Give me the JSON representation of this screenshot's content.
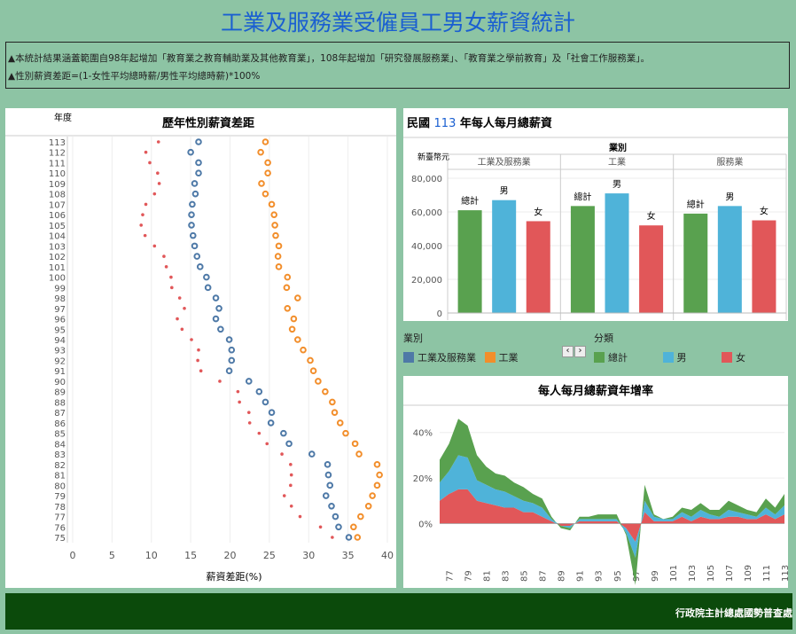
{
  "header": {
    "title": "工業及服務業受僱員工男女薪資統計"
  },
  "notes": [
    "▲本統計結果涵蓋範圍自98年起增加「教育業之教育輔助業及其他教育業」，108年起增加「研究發展服務業」、「教育業之學前教育」及「社會工作服務業」。",
    "▲性別薪資差距=(1-女性平均總時薪/男性平均總時薪)*100%"
  ],
  "legend": {
    "industry_title": "業別",
    "industry_items": [
      "工業及服務業",
      "工業"
    ],
    "category_title": "分類",
    "category_items": [
      "總計",
      "男",
      "女"
    ],
    "prev": "‹",
    "next": "›"
  },
  "footer": {
    "text": "行政院主計總處國勢普查處"
  },
  "colors": {
    "blue": "#4e79a7",
    "orange": "#f28e2b",
    "green": "#59a14f",
    "lightblue": "#4fb3d9",
    "red": "#e15759"
  },
  "chart_data": [
    {
      "type": "scatter",
      "title": "歷年性別薪資差距",
      "ylabel": "年度",
      "xlabel": "薪資差距(%)",
      "xlim": [
        0,
        40
      ],
      "xticks": [
        0,
        5,
        10,
        15,
        20,
        25,
        30,
        35,
        40
      ],
      "years": [
        113,
        112,
        111,
        110,
        109,
        108,
        107,
        106,
        105,
        104,
        103,
        102,
        101,
        100,
        99,
        98,
        97,
        96,
        95,
        94,
        93,
        92,
        91,
        90,
        89,
        88,
        87,
        86,
        85,
        84,
        83,
        82,
        81,
        80,
        79,
        78,
        77,
        76,
        75
      ],
      "series": [
        {
          "name": "工業及服務業",
          "values": [
            16,
            15,
            16,
            16,
            15.5,
            15.6,
            15.2,
            15.1,
            15.1,
            15.3,
            15.5,
            15.8,
            16.2,
            17,
            17.2,
            18.2,
            18.6,
            18.2,
            18.8,
            19.9,
            20.2,
            20.2,
            19.9,
            22.4,
            23.7,
            24.5,
            25.3,
            25.2,
            26.8,
            27.5,
            30.4,
            32.4,
            32.5,
            32.7,
            32.2,
            32.9,
            33.4,
            33.8,
            35.1
          ]
        },
        {
          "name": "工業",
          "values": [
            24.5,
            23.9,
            24.8,
            24.8,
            24,
            24.5,
            25.3,
            25.6,
            25.7,
            25.8,
            26.2,
            26.1,
            26.2,
            27.3,
            27.2,
            28.6,
            27.3,
            28.1,
            27.9,
            28.6,
            29.3,
            30.2,
            30.6,
            31.2,
            32.1,
            33,
            33.3,
            34,
            34.7,
            35.9,
            36.4,
            38.7,
            39,
            38.7,
            38.1,
            37.6,
            36.6,
            35.7,
            36.2
          ]
        },
        {
          "name": "女",
          "values": [
            10.9,
            9.3,
            9.8,
            10.8,
            11,
            10.4,
            9.3,
            8.9,
            8.7,
            9.2,
            10.4,
            11.6,
            11.9,
            12.5,
            12.6,
            13.6,
            14.2,
            13.3,
            13.9,
            15.1,
            16,
            15.9,
            16.3,
            18.7,
            21,
            21.2,
            22.4,
            22.5,
            23.7,
            24.7,
            26.6,
            27.7,
            27.8,
            27.7,
            26.9,
            27.8,
            28.9,
            31.5,
            33
          ]
        }
      ]
    },
    {
      "type": "bar",
      "title": "民國 113 年每人每月總薪資",
      "title_prefix": "民國",
      "title_year": "113",
      "title_suffix": "年每人每月總薪資",
      "ylabel": "新臺幣元",
      "group_title": "業別",
      "groups": [
        "工業及服務業",
        "工業",
        "服務業"
      ],
      "categories": [
        "總計",
        "男",
        "女"
      ],
      "ylim": [
        0,
        80000
      ],
      "yticks": [
        0,
        20000,
        40000,
        60000,
        80000
      ],
      "ytick_labels": [
        "0",
        "20,000",
        "40,000",
        "60,000",
        "80,000"
      ],
      "series": [
        {
          "name": "工業及服務業",
          "values": [
            61000,
            67000,
            54500
          ]
        },
        {
          "name": "工業",
          "values": [
            63500,
            71000,
            52000
          ]
        },
        {
          "name": "服務業",
          "values": [
            59000,
            63500,
            55000
          ]
        }
      ]
    },
    {
      "type": "area",
      "title": "每人每月總薪資年增率",
      "x": [
        76,
        77,
        78,
        79,
        80,
        81,
        82,
        83,
        84,
        85,
        86,
        87,
        88,
        89,
        90,
        91,
        92,
        93,
        94,
        95,
        96,
        97,
        98,
        99,
        100,
        101,
        102,
        103,
        104,
        105,
        106,
        107,
        108,
        109,
        110,
        111,
        112,
        113
      ],
      "xtick_labels": [
        "77",
        "79",
        "81",
        "83",
        "85",
        "87",
        "89",
        "91",
        "93",
        "95",
        "97",
        "99",
        "101",
        "103",
        "105",
        "107",
        "109",
        "111",
        "113"
      ],
      "yticks": [
        0,
        20,
        40
      ],
      "ytick_labels": [
        "0%",
        "20%",
        "40%"
      ],
      "ylim": [
        -15,
        50
      ],
      "series": [
        {
          "name": "女",
          "values": [
            10,
            13,
            15,
            15,
            10,
            9,
            8,
            7,
            7,
            5,
            5,
            3,
            1,
            -1,
            -1,
            1,
            1,
            1,
            1,
            1,
            -2,
            -8,
            5,
            1,
            1,
            1,
            3,
            1,
            3,
            2,
            2,
            3,
            3,
            2,
            2,
            4,
            2,
            4
          ]
        },
        {
          "name": "男",
          "values": [
            8,
            10,
            15,
            14,
            9,
            8,
            7,
            7,
            5,
            5,
            4,
            4,
            1,
            0,
            -1,
            1,
            1,
            1,
            1,
            1,
            -2,
            -7,
            5,
            2,
            1,
            1,
            2,
            2,
            3,
            2,
            1,
            3,
            2,
            2,
            1,
            3,
            2,
            4
          ]
        },
        {
          "name": "總計",
          "values": [
            10,
            12,
            16,
            14,
            11,
            8,
            7,
            7,
            6,
            6,
            4,
            4,
            1,
            -1,
            -1,
            1,
            1,
            2,
            2,
            2,
            -1,
            -12,
            7,
            1,
            0,
            1,
            2,
            3,
            3,
            2,
            3,
            4,
            3,
            2,
            2,
            4,
            3,
            5
          ]
        }
      ]
    }
  ]
}
